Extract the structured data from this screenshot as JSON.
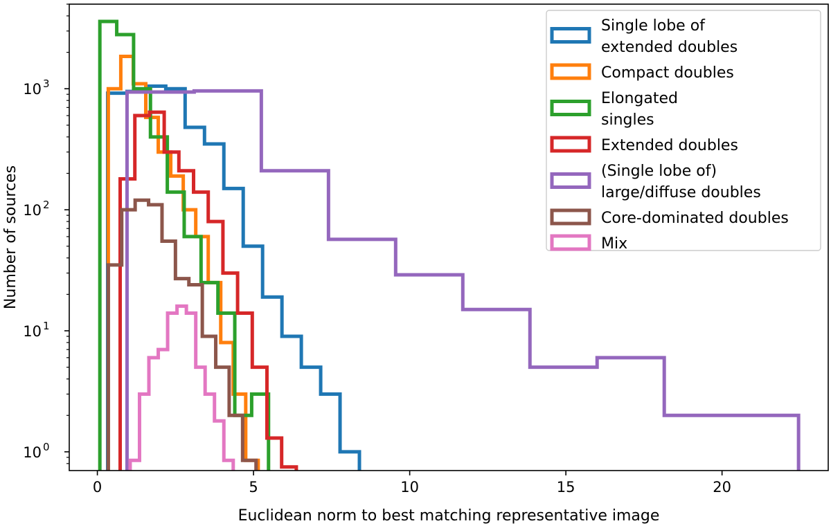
{
  "chart_data": {
    "type": "histogram",
    "xlabel": "Euclidean norm to best matching representative image",
    "ylabel": "Number of sources",
    "yscale": "log",
    "xlim": [
      -0.9,
      23.4
    ],
    "ylim": [
      0.7,
      5000
    ],
    "xticks": [
      0,
      5,
      10,
      15,
      20
    ],
    "yticks": [
      {
        "value": 1,
        "base": "10",
        "exp": "0"
      },
      {
        "value": 10,
        "base": "10",
        "exp": "1"
      },
      {
        "value": 100,
        "base": "10",
        "exp": "2"
      },
      {
        "value": 1000,
        "base": "10",
        "exp": "3"
      }
    ],
    "legend_position": "top-right",
    "series": [
      {
        "name": "Single lobe of extended doubles",
        "legend_lines": [
          "Single lobe of",
          "extended doubles"
        ],
        "color": "#1f77b4",
        "edges": [
          0.33,
          0.95,
          1.57,
          2.19,
          2.81,
          3.43,
          4.05,
          4.67,
          5.29,
          5.91,
          6.53,
          7.15,
          7.77,
          8.39
        ],
        "counts": [
          920,
          950,
          1050,
          1000,
          480,
          350,
          150,
          50,
          19,
          9,
          5,
          3,
          1
        ]
      },
      {
        "name": "Compact doubles",
        "legend_lines": [
          "Compact doubles"
        ],
        "color": "#ff7f0e",
        "edges": [
          0.35,
          0.75,
          1.15,
          1.55,
          1.95,
          2.35,
          2.75,
          3.15,
          3.55,
          3.95,
          4.35,
          4.75,
          5.15
        ],
        "counts": [
          1000,
          1850,
          1100,
          580,
          300,
          190,
          100,
          60,
          25,
          8,
          3,
          0.85
        ]
      },
      {
        "name": "Elongated singles",
        "legend_lines": [
          "Elongated",
          "singles"
        ],
        "color": "#2ca02c",
        "edges": [
          0.08,
          0.62,
          1.16,
          1.7,
          2.24,
          2.78,
          3.32,
          3.86,
          4.4,
          4.94,
          5.48
        ],
        "counts": [
          3600,
          2800,
          1000,
          400,
          140,
          60,
          25,
          14,
          2,
          3
        ]
      },
      {
        "name": "Extended doubles",
        "legend_lines": [
          "Extended doubles"
        ],
        "color": "#d62728",
        "edges": [
          0.73,
          1.2,
          1.67,
          2.14,
          2.61,
          3.08,
          3.55,
          4.02,
          4.49,
          4.96,
          5.43,
          5.9,
          6.37
        ],
        "counts": [
          180,
          600,
          640,
          300,
          210,
          140,
          80,
          30,
          14,
          5,
          1.3,
          0.75
        ]
      },
      {
        "name": "(Single lobe of) large/diffuse doubles",
        "legend_lines": [
          "(Single lobe of)",
          "large/diffuse doubles"
        ],
        "color": "#9467bd",
        "edges": [
          0.95,
          3.1,
          5.25,
          7.4,
          9.55,
          11.7,
          13.85,
          16.0,
          18.15,
          20.3,
          22.45
        ],
        "counts": [
          940,
          960,
          210,
          57,
          29,
          15,
          5,
          6,
          2,
          2
        ]
      },
      {
        "name": "Core-dominated doubles",
        "legend_lines": [
          "Core-dominated doubles"
        ],
        "color": "#8c564b",
        "edges": [
          0.35,
          0.78,
          1.21,
          1.64,
          2.07,
          2.5,
          2.93,
          3.36,
          3.79,
          4.22,
          4.65,
          5.08
        ],
        "counts": [
          35,
          100,
          120,
          110,
          55,
          27,
          24,
          9,
          5,
          2,
          0.85
        ]
      },
      {
        "name": "Mix",
        "legend_lines": [
          "Mix"
        ],
        "color": "#e377c2",
        "edges": [
          1.05,
          1.35,
          1.65,
          1.95,
          2.25,
          2.55,
          2.85,
          3.15,
          3.45,
          3.75,
          4.05,
          4.35
        ],
        "counts": [
          0.85,
          3,
          6,
          7,
          14,
          16,
          14,
          5,
          3,
          1.8,
          0.85
        ]
      }
    ]
  }
}
